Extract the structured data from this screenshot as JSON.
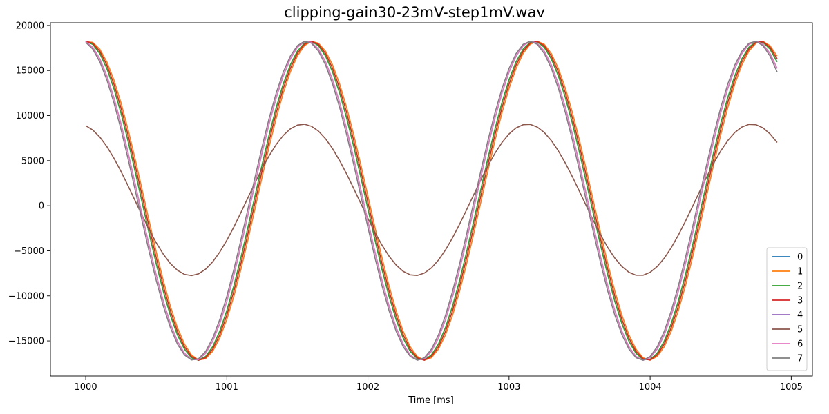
{
  "chart_data": {
    "type": "line",
    "title": "clipping-gain30-23mV-step1mV.wav",
    "xlabel": "Time [ms]",
    "ylabel": "",
    "xlim": [
      999.75,
      1005.15
    ],
    "ylim": [
      -18900,
      20300
    ],
    "x_ticks": [
      1000,
      1001,
      1002,
      1003,
      1004,
      1005
    ],
    "y_ticks": [
      -15000,
      -10000,
      -5000,
      0,
      5000,
      10000,
      15000,
      20000
    ],
    "y_tick_labels": [
      "−15000",
      "−10000",
      "−5000",
      "0",
      "5000",
      "10000",
      "15000",
      "20000"
    ],
    "grid": false,
    "legend_position": "lower-right",
    "x_start": 1000,
    "x_end": 1004.9,
    "x_step": 0.05,
    "period_ms": 1.59,
    "series": [
      {
        "name": "0",
        "color": "#1f77b4",
        "amplitude": 17700,
        "offset": 550,
        "peak_ms": 1000.0
      },
      {
        "name": "1",
        "color": "#ff7f0e",
        "amplitude": 17700,
        "offset": 550,
        "peak_ms": 1000.02
      },
      {
        "name": "2",
        "color": "#2ca02c",
        "amplitude": 17700,
        "offset": 550,
        "peak_ms": 1000.0
      },
      {
        "name": "3",
        "color": "#d62728",
        "amplitude": 17700,
        "offset": 550,
        "peak_ms": 1000.01
      },
      {
        "name": "4",
        "color": "#9467bd",
        "amplitude": 17700,
        "offset": 550,
        "peak_ms": 999.98
      },
      {
        "name": "5",
        "color": "#8c564b",
        "amplitude": 8400,
        "offset": 650,
        "peak_ms": 999.95
      },
      {
        "name": "6",
        "color": "#e377c2",
        "amplitude": 17700,
        "offset": 550,
        "peak_ms": 999.98
      },
      {
        "name": "7",
        "color": "#7f7f7f",
        "amplitude": 17700,
        "offset": 550,
        "peak_ms": 999.97
      }
    ]
  }
}
